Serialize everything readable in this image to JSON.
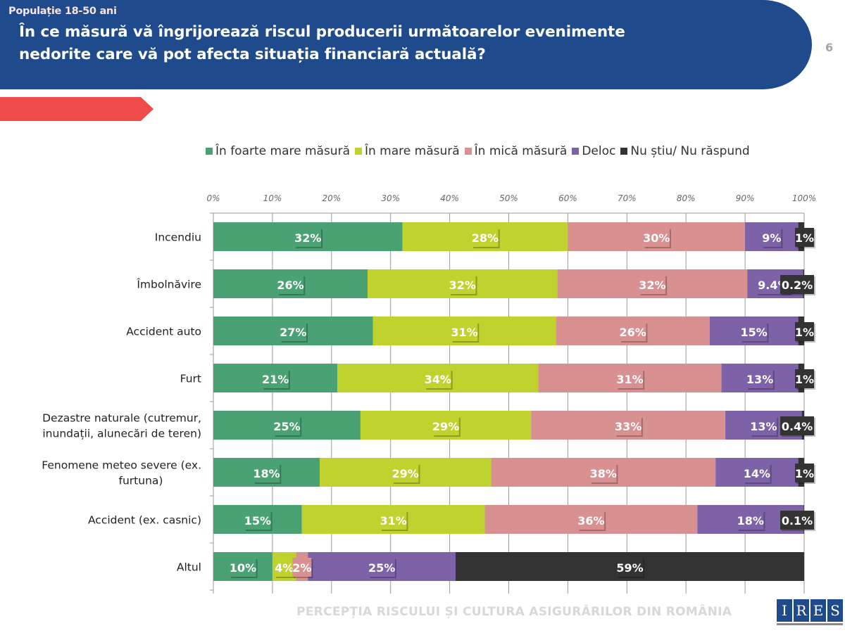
{
  "header": {
    "title_line1": "În ce măsură vă îngrijorează riscul producerii următoarelor evenimente",
    "title_line2": "nedorite care vă pot afecta situația financiară actuală?",
    "page_number": "6"
  },
  "tag": {
    "label": "Populație 18-50 ani"
  },
  "footer": {
    "text": "PERCEPȚIA RISCULUI ȘI CULTURA ASIGURĂRILOR DIN ROMÂNIA",
    "logo_letters": [
      "I",
      "R",
      "E",
      "S"
    ]
  },
  "colors": {
    "header_blue": "#1f4a8b",
    "tag_red": "#ef4b4b",
    "series": [
      "#4aa173",
      "#bfd22e",
      "#d99090",
      "#7d62a8",
      "#333333"
    ]
  },
  "chart_data": {
    "type": "bar",
    "orientation": "horizontal",
    "stacked": "percent",
    "title": "În ce măsură vă îngrijorează riscul producerii următoarelor evenimente nedorite care vă pot afecta situația financiară actuală?",
    "xlabel": "",
    "ylabel": "",
    "xlim": [
      0,
      100
    ],
    "x_ticks": [
      "0%",
      "10%",
      "20%",
      "30%",
      "40%",
      "50%",
      "60%",
      "70%",
      "80%",
      "90%",
      "100%"
    ],
    "grid": "vertical",
    "legend_position": "top",
    "categories": [
      "Incendiu",
      "Îmbolnăvire",
      "Accident auto",
      "Furt",
      "Dezastre naturale (cutremur, inundații, alunecări de teren)",
      "Fenomene meteo severe (ex. furtuna)",
      "Accident (ex. casnic)",
      "Altul"
    ],
    "category_lines": [
      [
        "Incendiu"
      ],
      [
        "Îmbolnăvire"
      ],
      [
        "Accident auto"
      ],
      [
        "Furt"
      ],
      [
        "Dezastre naturale (cutremur,",
        "inundații, alunecări de teren)"
      ],
      [
        "Fenomene meteo severe (ex.",
        "furtuna)"
      ],
      [
        "Accident (ex. casnic)"
      ],
      [
        "Altul"
      ]
    ],
    "series": [
      {
        "name": "În foarte mare măsură",
        "values": [
          32,
          26,
          27,
          21,
          25,
          18,
          15,
          10
        ],
        "labels": [
          "32%",
          "26%",
          "27%",
          "21%",
          "25%",
          "18%",
          "15%",
          "10%"
        ]
      },
      {
        "name": "În mare măsură",
        "values": [
          28,
          32,
          31,
          34,
          29,
          29,
          31,
          4
        ],
        "labels": [
          "28%",
          "32%",
          "31%",
          "34%",
          "29%",
          "29%",
          "31%",
          "4%"
        ]
      },
      {
        "name": "În mică măsură",
        "values": [
          30,
          32,
          26,
          31,
          33,
          38,
          36,
          2
        ],
        "labels": [
          "30%",
          "32%",
          "26%",
          "31%",
          "33%",
          "38%",
          "36%",
          "2%"
        ]
      },
      {
        "name": "Deloc",
        "values": [
          9,
          9.4,
          15,
          13,
          13,
          14,
          18,
          25
        ],
        "labels": [
          "9%",
          "9.4%",
          "15%",
          "13%",
          "13%",
          "14%",
          "18%",
          "25%"
        ]
      },
      {
        "name": "Nu știu/ Nu răspund",
        "values": [
          1,
          0.2,
          1,
          1,
          0.4,
          1,
          0.1,
          59
        ],
        "labels": [
          "1%",
          "0.2%",
          "1%",
          "1%",
          "0.4%",
          "1%",
          "0.1%",
          "59%"
        ]
      }
    ]
  }
}
